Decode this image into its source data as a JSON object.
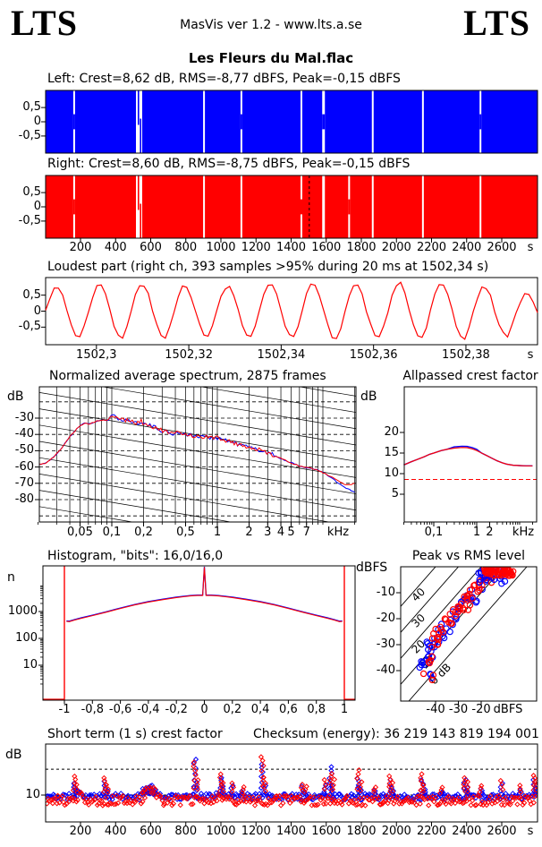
{
  "header": {
    "logo_left": "LTS",
    "logo_right": "LTS",
    "app_line": "MasVis ver 1.2 - www.lts.a.se",
    "title": "Les Fleurs du Mal.flac"
  },
  "colors": {
    "left_channel": "#0000ff",
    "right_channel": "#ff0000",
    "axis": "#000000",
    "background": "#ffffff",
    "dashed_ref": "#ff0000"
  },
  "chart_data": [
    {
      "id": "waveform-left",
      "type": "area",
      "color": "#0000ff",
      "title": "Left: Crest=8,62 dB, RMS=-8,77 dBFS, Peak=-0,15 dBFS",
      "xlim_s": [
        0,
        2800
      ],
      "ylim": [
        -1.1,
        1.1
      ],
      "yticks": [
        {
          "v": 0.5,
          "label": "0,5"
        },
        {
          "v": 0,
          "label": "0"
        },
        {
          "v": -0.5,
          "label": "-0,5"
        }
      ],
      "gaps": [
        {
          "f": 0.058,
          "w": 2,
          "bridge": true
        },
        {
          "f": 0.19,
          "w": 7,
          "wisp": true
        },
        {
          "f": 0.322,
          "w": 2
        },
        {
          "f": 0.398,
          "w": 2,
          "bridge": true
        },
        {
          "f": 0.52,
          "w": 2
        },
        {
          "f": 0.565,
          "w": 3,
          "bridge": true
        },
        {
          "f": 0.665,
          "w": 2
        },
        {
          "f": 0.767,
          "w": 2
        },
        {
          "f": 0.884,
          "w": 2,
          "bridge": true
        }
      ]
    },
    {
      "id": "waveform-right",
      "type": "area",
      "color": "#ff0000",
      "title": "Right: Crest=8,60 dB, RMS=-8,75 dBFS, Peak=-0,15 dBFS",
      "xlim_s": [
        0,
        2800
      ],
      "ylim": [
        -1.1,
        1.1
      ],
      "marker_f": 0.536,
      "yticks": [
        {
          "v": 0.5,
          "label": "0,5"
        },
        {
          "v": 0,
          "label": "0"
        },
        {
          "v": -0.5,
          "label": "-0,5"
        }
      ],
      "gaps": [
        {
          "f": 0.058,
          "w": 2,
          "bridge": true
        },
        {
          "f": 0.19,
          "w": 7,
          "wisp": true
        },
        {
          "f": 0.322,
          "w": 2
        },
        {
          "f": 0.398,
          "w": 2
        },
        {
          "f": 0.52,
          "w": 2,
          "bridge": true
        },
        {
          "f": 0.565,
          "w": 3
        },
        {
          "f": 0.617,
          "w": 2,
          "bridge": true
        },
        {
          "f": 0.665,
          "w": 2
        },
        {
          "f": 0.767,
          "w": 2
        },
        {
          "f": 0.884,
          "w": 2
        }
      ]
    },
    {
      "id": "time-axis",
      "ticks": [
        200,
        400,
        600,
        800,
        1000,
        1200,
        1400,
        1600,
        1800,
        2000,
        2200,
        2400,
        2600
      ],
      "unit": "s"
    },
    {
      "id": "loudest-part",
      "type": "line",
      "color": "#ff0000",
      "title": "Loudest part (right ch, 393 samples >95% during 20 ms at 1502,34 s)",
      "x_start": 1502.289,
      "x_span": 0.1065,
      "ylim": [
        -1.05,
        1.05
      ],
      "yticks": [
        {
          "v": 0.5,
          "label": "0,5"
        },
        {
          "v": 0,
          "label": "0"
        },
        {
          "v": -0.5,
          "label": "-0,5"
        }
      ],
      "xticks": [
        {
          "v": 1502.3,
          "label": "1502,3"
        },
        {
          "v": 1502.32,
          "label": "1502,32"
        },
        {
          "v": 1502.34,
          "label": "1502,34"
        },
        {
          "v": 1502.36,
          "label": "1502,36"
        },
        {
          "v": 1502.38,
          "label": "1502,38"
        }
      ],
      "unit": "s",
      "cycle_shape": [
        0,
        0.52,
        0.85,
        0.9,
        0.55,
        0.02,
        -0.5,
        -0.85,
        -0.9,
        -0.55
      ],
      "cycle_amps": [
        0.92,
        0.98,
        1.0,
        0.96,
        0.94,
        1.0,
        1.03,
        0.99,
        1.05,
        1.0,
        0.9,
        0.62
      ],
      "half_cycles_shown": 11.5,
      "noise": 0.06
    },
    {
      "id": "spectrum",
      "type": "line",
      "title": "Normalized average spectrum, 2875 frames",
      "ylabel": "dB",
      "unit": "kHz",
      "flim": [
        0.02,
        20
      ],
      "ylim": [
        -94,
        -10
      ],
      "yticks": [
        -30,
        -40,
        -50,
        -60,
        -70,
        -80
      ],
      "xticks": [
        {
          "v": 0.05,
          "label": "0,05"
        },
        {
          "v": 0.1,
          "label": "0,1"
        },
        {
          "v": 0.2,
          "label": "0,2"
        },
        {
          "v": 0.5,
          "label": "0,5"
        },
        {
          "v": 1,
          "label": "1"
        },
        {
          "v": 2,
          "label": "2"
        },
        {
          "v": 3,
          "label": "3"
        },
        {
          "v": 4,
          "label": "4"
        },
        {
          "v": 5,
          "label": "5"
        },
        {
          "v": 7,
          "label": "7"
        }
      ],
      "red": [
        [
          0.02,
          -58.5
        ],
        [
          0.024,
          -57.5
        ],
        [
          0.028,
          -54
        ],
        [
          0.032,
          -50
        ],
        [
          0.036,
          -45.5
        ],
        [
          0.04,
          -41.5
        ],
        [
          0.045,
          -37.5
        ],
        [
          0.05,
          -34.5
        ],
        [
          0.055,
          -33.2
        ],
        [
          0.06,
          -33.6
        ],
        [
          0.065,
          -33
        ],
        [
          0.07,
          -32.2
        ],
        [
          0.075,
          -31.6
        ],
        [
          0.08,
          -31.2
        ],
        [
          0.09,
          -31.6
        ],
        [
          0.1,
          -29.2
        ],
        [
          0.105,
          -28.6
        ],
        [
          0.115,
          -30.2
        ],
        [
          0.13,
          -30.8
        ],
        [
          0.15,
          -31.8
        ],
        [
          0.17,
          -33
        ],
        [
          0.19,
          -32
        ],
        [
          0.21,
          -34
        ],
        [
          0.24,
          -35
        ],
        [
          0.28,
          -36.8
        ],
        [
          0.33,
          -38.6
        ],
        [
          0.38,
          -39.8
        ],
        [
          0.43,
          -38.8
        ],
        [
          0.5,
          -39.6
        ],
        [
          0.6,
          -41
        ],
        [
          0.7,
          -41.4
        ],
        [
          0.85,
          -41.8
        ],
        [
          1.0,
          -42
        ],
        [
          1.2,
          -43.6
        ],
        [
          1.5,
          -45.6
        ],
        [
          1.8,
          -47
        ],
        [
          2.2,
          -48.8
        ],
        [
          2.7,
          -50
        ],
        [
          3.2,
          -51.8
        ],
        [
          4,
          -54.8
        ],
        [
          5,
          -57.4
        ],
        [
          6,
          -59.4
        ],
        [
          7,
          -60.4
        ],
        [
          8,
          -61
        ],
        [
          9,
          -62
        ],
        [
          10,
          -63.4
        ],
        [
          12,
          -66
        ],
        [
          14,
          -68.5
        ],
        [
          16,
          -70.5
        ],
        [
          18,
          -70.8
        ],
        [
          20,
          -70
        ]
      ],
      "blue_tail": [
        [
          12,
          -66.5
        ],
        [
          14,
          -70
        ],
        [
          16,
          -72.5
        ],
        [
          18,
          -74
        ],
        [
          20,
          -75.5
        ]
      ],
      "jitter": {
        "fmin": 0.09,
        "fmax": 3.5,
        "amp": 1.3,
        "base": 0.35
      }
    },
    {
      "id": "allpassed-crest",
      "type": "line",
      "title": "Allpassed crest factor",
      "ylabel": "dB",
      "unit": "kHz",
      "flim": [
        0.02,
        25
      ],
      "ylim": [
        0,
        31
      ],
      "yticks": [
        20,
        15,
        10,
        5
      ],
      "xticks": [
        {
          "v": 0.1,
          "label": "0,1"
        },
        {
          "v": 1,
          "label": "1"
        },
        {
          "v": 2,
          "label": "2"
        }
      ],
      "curve": [
        [
          0.02,
          12.1
        ],
        [
          0.03,
          12.9
        ],
        [
          0.04,
          13.4
        ],
        [
          0.06,
          14.1
        ],
        [
          0.08,
          14.7
        ],
        [
          0.1,
          15.0
        ],
        [
          0.15,
          15.6
        ],
        [
          0.2,
          15.9
        ],
        [
          0.3,
          16.2
        ],
        [
          0.45,
          16.35
        ],
        [
          0.6,
          16.3
        ],
        [
          0.8,
          16.0
        ],
        [
          1.0,
          15.6
        ],
        [
          1.3,
          15.0
        ],
        [
          1.7,
          14.4
        ],
        [
          2.2,
          13.8
        ],
        [
          3,
          13.1
        ],
        [
          4,
          12.6
        ],
        [
          5,
          12.3
        ],
        [
          7,
          12.05
        ],
        [
          10,
          11.95
        ],
        [
          14,
          11.9
        ],
        [
          20,
          11.9
        ]
      ],
      "blue_delta": [
        [
          0.3,
          1.0,
          0.3
        ]
      ],
      "dashed_level": 8.6
    },
    {
      "id": "histogram",
      "type": "line",
      "title": "Histogram, \"bits\": 16,0/16,0",
      "ylabel": "n",
      "yticks": [
        1000,
        100,
        10
      ],
      "xticks": [
        {
          "v": -1,
          "label": "-1"
        },
        {
          "v": -0.8,
          "label": "-0,8"
        },
        {
          "v": -0.6,
          "label": "-0,6"
        },
        {
          "v": -0.4,
          "label": "-0,4"
        },
        {
          "v": -0.2,
          "label": "-0,2"
        },
        {
          "v": 0,
          "label": "0"
        },
        {
          "v": 0.2,
          "label": "0,2"
        },
        {
          "v": 0.4,
          "label": "0,4"
        },
        {
          "v": 0.6,
          "label": "0,6"
        },
        {
          "v": 0.8,
          "label": "0,8"
        },
        {
          "v": 1,
          "label": "1"
        }
      ],
      "half_curve": [
        [
          0,
          4100
        ],
        [
          0.05,
          3950
        ],
        [
          0.1,
          3800
        ],
        [
          0.15,
          3550
        ],
        [
          0.2,
          3300
        ],
        [
          0.3,
          2750
        ],
        [
          0.4,
          2250
        ],
        [
          0.5,
          1750
        ],
        [
          0.6,
          1300
        ],
        [
          0.7,
          950
        ],
        [
          0.8,
          700
        ],
        [
          0.88,
          560
        ],
        [
          0.93,
          480
        ],
        [
          0.965,
          420
        ],
        [
          0.985,
          430
        ]
      ],
      "center_spike_n": 45000,
      "center_spike_halfwidth": 0.012,
      "edge_spikes_x": [
        -1,
        1
      ]
    },
    {
      "id": "peak-vs-rms",
      "type": "scatter",
      "title": "Peak vs RMS level",
      "ylabel": "dBFS",
      "xunit": "dBFS",
      "yticks": [
        -10,
        -20,
        -30,
        -40
      ],
      "xticks": [
        -40,
        -30,
        -20
      ],
      "diagonals": [
        {
          "c": 40,
          "label": "40"
        },
        {
          "c": 30,
          "label": "30"
        },
        {
          "c": 20,
          "label": "20"
        },
        {
          "c": 10,
          "label": "10"
        },
        {
          "c": 0,
          "label": "0 dB"
        }
      ],
      "seed": 7,
      "clusters": [
        {
          "color": "#0000ff",
          "n": 48,
          "rms": [
            -46,
            -17
          ],
          "crest": [
            8.5,
            15.5
          ]
        },
        {
          "color": "#ff0000",
          "n": 52,
          "rms": [
            -44,
            -15
          ],
          "crest": [
            9,
            16
          ]
        },
        {
          "color": "#0000ff",
          "n": 26,
          "rms": [
            -22,
            -9
          ],
          "peak": [
            -6.5,
            -0.8
          ]
        },
        {
          "color": "#ff0000",
          "n": 62,
          "rms": [
            -19,
            -6
          ],
          "peak": [
            -3.5,
            -0.3
          ]
        },
        {
          "color": "#0000ff",
          "n": 13,
          "rms": [
            -47,
            -40
          ],
          "peak": [
            -46,
            -31
          ]
        },
        {
          "color": "#ff0000",
          "n": 7,
          "rms": [
            -46,
            -41
          ],
          "peak": [
            -44,
            -33
          ]
        }
      ]
    },
    {
      "id": "short-term-crest",
      "type": "scatter",
      "title": "Short term (1 s) crest factor",
      "checksum": "Checksum (energy): 36 219 143 819 194 001",
      "ylabel": "dB",
      "ytick_labeled": 10,
      "dashed_levels": [
        10,
        20
      ],
      "unit": "s",
      "seed": 11,
      "step_s": 8,
      "base": {
        "red": {
          "v": 8.7,
          "jit": 1.15
        },
        "blue": {
          "v": 9.6,
          "jit": 0.85
        }
      },
      "bumps": [
        [
          540,
          660,
          2.6
        ],
        [
          150,
          235,
          1.0
        ],
        [
          960,
          1060,
          0.8
        ]
      ],
      "spikes": [
        [
          165,
          16.5,
          13.5
        ],
        [
          175,
          13,
          11.5
        ],
        [
          340,
          15.8,
          14.5
        ],
        [
          350,
          13,
          11
        ],
        [
          560,
          11.5,
          11.8
        ],
        [
          580,
          12,
          12
        ],
        [
          600,
          12.2,
          11.6
        ],
        [
          620,
          11.6,
          11
        ],
        [
          850,
          24,
          26
        ],
        [
          862,
          15,
          14
        ],
        [
          1000,
          17.5,
          16
        ],
        [
          1012,
          14,
          12.5
        ],
        [
          1065,
          13.5,
          12.8
        ],
        [
          1125,
          12.5,
          11.5
        ],
        [
          1235,
          28,
          23
        ],
        [
          1248,
          16,
          13
        ],
        [
          1465,
          13.5,
          12.5
        ],
        [
          1482,
          12.5,
          11
        ],
        [
          1590,
          15,
          13
        ],
        [
          1625,
          18,
          21.5
        ],
        [
          1640,
          15,
          13
        ],
        [
          1782,
          19.5,
          15.5
        ],
        [
          1795,
          14,
          12
        ],
        [
          1875,
          12.5,
          11.5
        ],
        [
          1965,
          16.5,
          15
        ],
        [
          1978,
          14,
          12
        ],
        [
          2145,
          17.5,
          15
        ],
        [
          2158,
          13,
          11.5
        ],
        [
          2255,
          12.5,
          11
        ],
        [
          2390,
          15.8,
          15.2
        ],
        [
          2402,
          14,
          12
        ],
        [
          2482,
          13,
          12
        ],
        [
          2600,
          14.8,
          13.5
        ],
        [
          2705,
          13,
          11.5
        ],
        [
          2782,
          17,
          15
        ],
        [
          2795,
          14.5,
          13
        ]
      ]
    }
  ]
}
